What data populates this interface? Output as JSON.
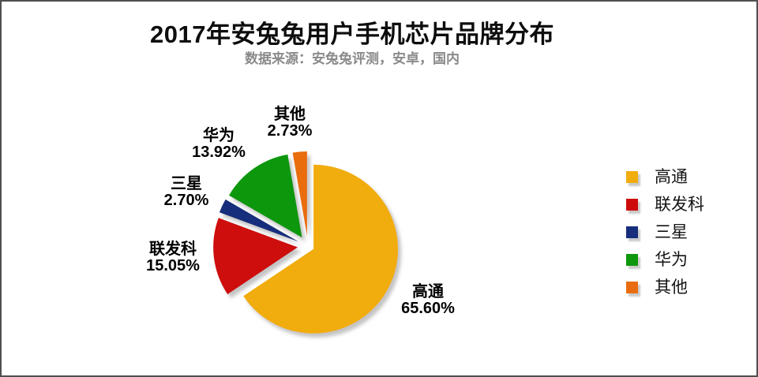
{
  "chart_data": {
    "type": "pie",
    "title": "2017年安兔兔用户手机芯片品牌分布",
    "subtitle": "数据来源：安兔兔评测，安卓，国内",
    "unit": "percent",
    "legend_position": "right",
    "start_angle_deg": 0,
    "clockwise": true,
    "slices": [
      {
        "id": "qualcomm",
        "label": "高通",
        "value": 65.6,
        "display": "65.60%",
        "color": "#F1AC0E"
      },
      {
        "id": "mediatek",
        "label": "联发科",
        "value": 15.05,
        "display": "15.05%",
        "color": "#CE0B0B"
      },
      {
        "id": "samsung",
        "label": "三星",
        "value": 2.7,
        "display": "2.70%",
        "color": "#172E7C"
      },
      {
        "id": "huawei",
        "label": "华为",
        "value": 13.92,
        "display": "13.92%",
        "color": "#0D970D"
      },
      {
        "id": "others",
        "label": "其他",
        "value": 2.73,
        "display": "2.73%",
        "color": "#E96D10"
      }
    ]
  }
}
